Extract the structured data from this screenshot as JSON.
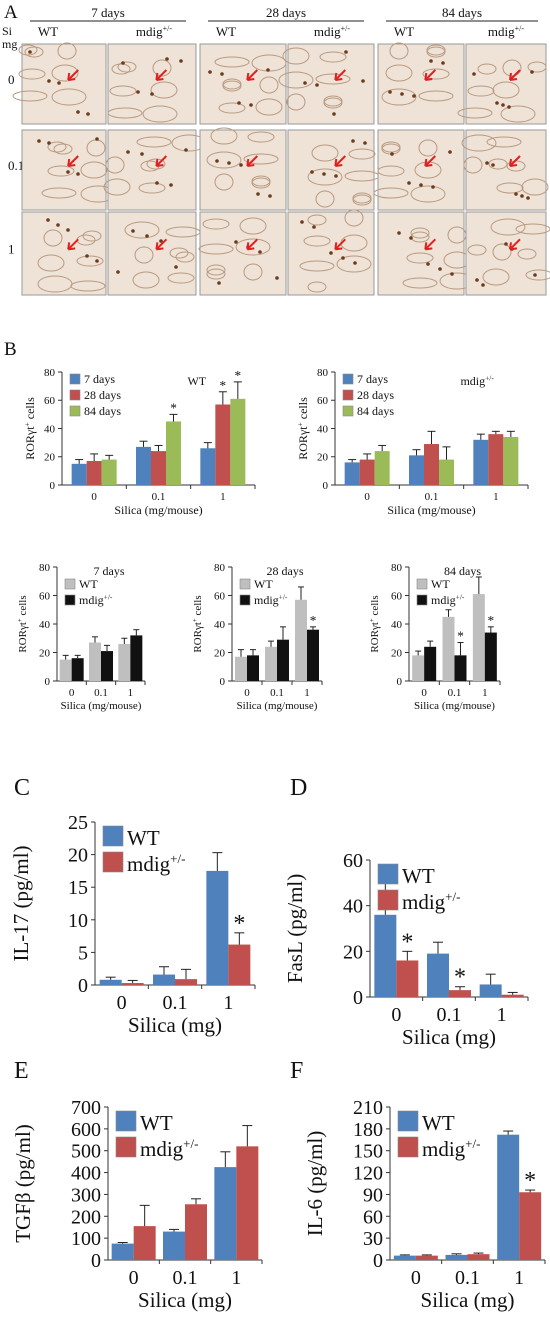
{
  "colors": {
    "blue": "#4f81bd",
    "red": "#c0504d",
    "green": "#9bbb59",
    "gray": "#bfbfbf",
    "black": "#111111",
    "arrow": "#e02020"
  },
  "panel_a": {
    "label": "A",
    "day_headers": [
      "7 days",
      "28 days",
      "84 days"
    ],
    "genotypes": [
      "WT",
      "mdig+/-"
    ],
    "si_label": "Si",
    "mg_label": "mg",
    "rows": [
      "0",
      "0.1",
      "1"
    ]
  },
  "panel_b": {
    "label": "B"
  },
  "panel_c": {
    "label": "C"
  },
  "panel_d": {
    "label": "D"
  },
  "panel_e": {
    "label": "E"
  },
  "panel_f": {
    "label": "F"
  },
  "chart_data": [
    {
      "id": "b1",
      "type": "bar",
      "categories": [
        "0",
        "0.1",
        "1"
      ],
      "series": [
        {
          "name": "7 days",
          "values": [
            15,
            27,
            26
          ],
          "err": [
            3,
            4,
            4
          ]
        },
        {
          "name": "28 days",
          "values": [
            17,
            24,
            57
          ],
          "err": [
            5,
            4,
            9
          ]
        },
        {
          "name": "84 days",
          "values": [
            18,
            45,
            61
          ],
          "err": [
            3,
            5,
            12
          ]
        }
      ],
      "ylim": [
        0,
        80
      ],
      "yticks": [
        0,
        20,
        40,
        60,
        80
      ],
      "ylabel": "RORγt+ cells",
      "xlabel": "Silica (mg/mouse)",
      "annotation": "WT",
      "stars": [
        {
          "cat": 2,
          "series": 1
        },
        {
          "cat": 2,
          "series": 2
        },
        {
          "cat": 1,
          "series": 2
        }
      ]
    },
    {
      "id": "b2",
      "type": "bar",
      "categories": [
        "0",
        "0.1",
        "1"
      ],
      "series": [
        {
          "name": "7 days",
          "values": [
            16,
            21,
            32
          ],
          "err": [
            2,
            4,
            4
          ]
        },
        {
          "name": "28 days",
          "values": [
            18,
            29,
            36
          ],
          "err": [
            4,
            9,
            2
          ]
        },
        {
          "name": "84 days",
          "values": [
            24,
            18,
            34
          ],
          "err": [
            4,
            9,
            4
          ]
        }
      ],
      "ylim": [
        0,
        80
      ],
      "yticks": [
        0,
        20,
        40,
        60,
        80
      ],
      "ylabel": "RORγt+ cells",
      "xlabel": "Silica (mg/mouse)",
      "annotation": "mdig+/-",
      "stars": []
    },
    {
      "id": "b3",
      "type": "bar",
      "categories": [
        "0",
        "0.1",
        "1"
      ],
      "series": [
        {
          "name": "WT",
          "values": [
            15,
            27,
            26
          ],
          "err": [
            3,
            4,
            4
          ]
        },
        {
          "name": "mdig+/-",
          "values": [
            16,
            21,
            32
          ],
          "err": [
            2,
            4,
            4
          ]
        }
      ],
      "ylim": [
        0,
        80
      ],
      "yticks": [
        0,
        20,
        40,
        60,
        80
      ],
      "ylabel": "RORγt+ cells",
      "xlabel": "Silica (mg/mouse)",
      "title": "7 days",
      "stars": []
    },
    {
      "id": "b4",
      "type": "bar",
      "categories": [
        "0",
        "0.1",
        "1"
      ],
      "series": [
        {
          "name": "WT",
          "values": [
            17,
            24,
            57
          ],
          "err": [
            5,
            4,
            9
          ]
        },
        {
          "name": "mdig+/-",
          "values": [
            18,
            29,
            36
          ],
          "err": [
            4,
            9,
            2
          ]
        }
      ],
      "ylim": [
        0,
        80
      ],
      "yticks": [
        0,
        20,
        40,
        60,
        80
      ],
      "ylabel": "RORγt+ cells",
      "xlabel": "Silica (mg/mouse)",
      "title": "28 days",
      "stars": [
        {
          "cat": 2,
          "series": 1
        }
      ]
    },
    {
      "id": "b5",
      "type": "bar",
      "categories": [
        "0",
        "0.1",
        "1"
      ],
      "series": [
        {
          "name": "WT",
          "values": [
            18,
            45,
            61
          ],
          "err": [
            3,
            5,
            12
          ]
        },
        {
          "name": "mdig+/-",
          "values": [
            24,
            18,
            34
          ],
          "err": [
            4,
            9,
            4
          ]
        }
      ],
      "ylim": [
        0,
        80
      ],
      "yticks": [
        0,
        20,
        40,
        60,
        80
      ],
      "ylabel": "RORγt+ cells",
      "xlabel": "Silica (mg/mouse)",
      "title": "84 days",
      "stars": [
        {
          "cat": 1,
          "series": 1
        },
        {
          "cat": 2,
          "series": 1
        }
      ]
    },
    {
      "id": "c",
      "type": "bar",
      "categories": [
        "0",
        "0.1",
        "1"
      ],
      "series": [
        {
          "name": "WT",
          "values": [
            0.8,
            1.6,
            17.5
          ],
          "err": [
            0.4,
            1.2,
            2.8
          ]
        },
        {
          "name": "mdig+/-",
          "values": [
            0.3,
            0.9,
            6.2
          ],
          "err": [
            0.4,
            1.5,
            1.8
          ]
        }
      ],
      "ylim": [
        0,
        25
      ],
      "yticks": [
        0,
        5,
        10,
        15,
        20,
        25
      ],
      "ylabel": "IL-17 (pg/ml)",
      "xlabel": "Silica (mg)",
      "stars": [
        {
          "cat": 2,
          "series": 1
        }
      ]
    },
    {
      "id": "d",
      "type": "bar",
      "categories": [
        "0",
        "0.1",
        "1"
      ],
      "series": [
        {
          "name": "WT",
          "values": [
            36,
            19,
            5.5
          ],
          "err": [
            14,
            5,
            4.5
          ]
        },
        {
          "name": "mdig+/-",
          "values": [
            16,
            3,
            1
          ],
          "err": [
            4,
            1.5,
            1
          ]
        }
      ],
      "ylim": [
        0,
        60
      ],
      "yticks": [
        0,
        20,
        40,
        60
      ],
      "ylabel": "FasL (pg/ml)",
      "xlabel": "Silica (mg)",
      "stars": [
        {
          "cat": 0,
          "series": 1
        },
        {
          "cat": 1,
          "series": 1
        }
      ]
    },
    {
      "id": "e",
      "type": "bar",
      "categories": [
        "0",
        "0.1",
        "1"
      ],
      "series": [
        {
          "name": "WT",
          "values": [
            75,
            130,
            425
          ],
          "err": [
            5,
            10,
            70
          ]
        },
        {
          "name": "mdig+/-",
          "values": [
            155,
            255,
            520
          ],
          "err": [
            95,
            25,
            95
          ]
        }
      ],
      "ylim": [
        0,
        700
      ],
      "yticks": [
        0,
        100,
        200,
        300,
        400,
        500,
        600,
        700
      ],
      "ylabel": "TGFβ (pg/ml)",
      "xlabel": "Silica (mg)",
      "stars": []
    },
    {
      "id": "f",
      "type": "bar",
      "categories": [
        "0",
        "0.1",
        "1"
      ],
      "series": [
        {
          "name": "WT",
          "values": [
            6,
            7,
            172
          ],
          "err": [
            1,
            1.5,
            5
          ]
        },
        {
          "name": "mdig+/-",
          "values": [
            6,
            8,
            93
          ],
          "err": [
            1,
            1.5,
            3
          ]
        }
      ],
      "ylim": [
        0,
        210
      ],
      "yticks": [
        0,
        30,
        60,
        90,
        120,
        150,
        180,
        210
      ],
      "ylabel": "IL-6 (pg/ml)",
      "xlabel": "Silica (mg)",
      "stars": [
        {
          "cat": 2,
          "series": 1
        }
      ]
    }
  ]
}
